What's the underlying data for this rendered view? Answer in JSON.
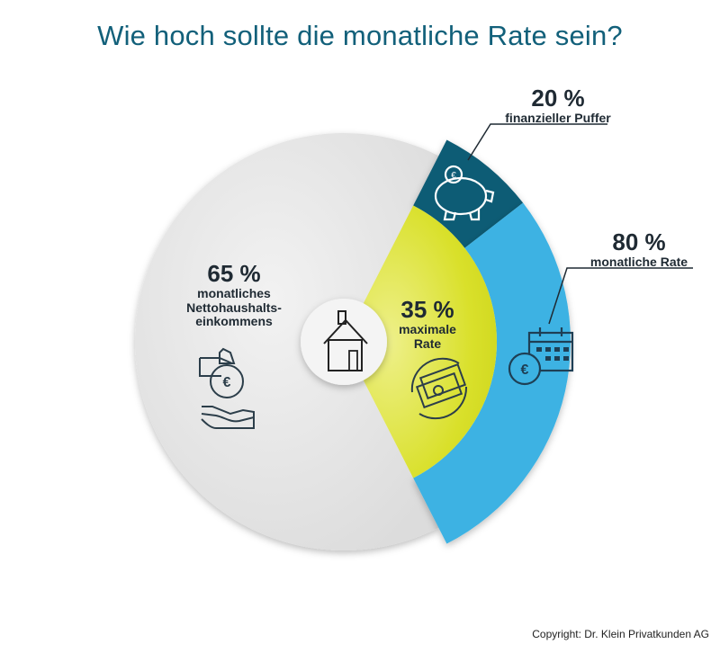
{
  "chart_data": {
    "type": "pie",
    "title": "Wie hoch sollte die monatliche Rate sein?",
    "inner": {
      "slices": [
        {
          "label": "monatliches Nettohaushalts-einkommens",
          "value": 65,
          "display": "65 %",
          "color": "#e9e9e9"
        },
        {
          "label": "maximale Rate",
          "value": 35,
          "display": "35 %",
          "color": "#d7df23"
        }
      ]
    },
    "outer": {
      "parent": "maximale Rate",
      "slices": [
        {
          "label": "finanzieller Puffer",
          "value": 20,
          "display": "20 %",
          "color": "#0e5c74"
        },
        {
          "label": "monatliche Rate",
          "value": 80,
          "display": "80 %",
          "color": "#3cb2e3"
        }
      ]
    }
  },
  "labels": {
    "outer_small": {
      "pct": "20 %",
      "text": "finanzieller Puffer"
    },
    "outer_large": {
      "pct": "80 %",
      "text": "monatliche Rate"
    },
    "inner_left": {
      "pct": "65 %",
      "lines": [
        "monatliches",
        "Nettohaushalts-",
        "einkommens"
      ]
    },
    "inner_right": {
      "pct": "35 %",
      "lines": [
        "maximale",
        "Rate"
      ]
    }
  },
  "icons": {
    "center": "house-icon",
    "left": [
      "money-bag-hand-icon",
      "open-hand-icon"
    ],
    "right": "money-exchange-icon",
    "outer_small": "piggy-bank-icon",
    "outer_large": "calendar-euro-icon"
  },
  "copyright": "Copyright: Dr. Klein Privatkunden AG"
}
